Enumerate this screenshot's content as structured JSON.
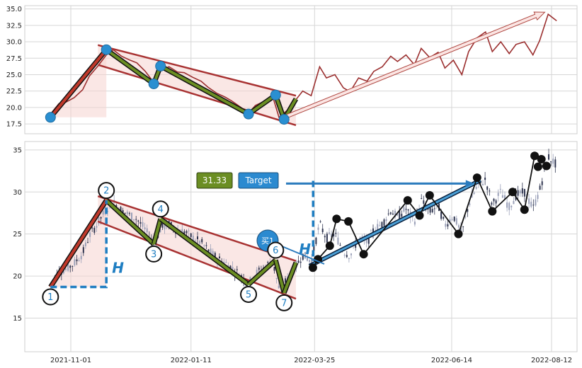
{
  "chart_data": [
    {
      "type": "line",
      "panel": "top",
      "title": "",
      "xlabel": "",
      "ylabel": "",
      "ylim": [
        16,
        35.5
      ],
      "yticks": [
        "17.5",
        "20.0",
        "22.5",
        "25.0",
        "27.5",
        "30.0",
        "32.5",
        "35.0"
      ],
      "grid": true,
      "series": [
        {
          "color": "#9b2f2f",
          "x": [
            "2021-10-20",
            "2021-10-25",
            "2021-10-29",
            "2021-11-03",
            "2021-11-08",
            "2021-11-12",
            "2021-11-17",
            "2021-11-22",
            "2021-11-26",
            "2021-12-01",
            "2021-12-06",
            "2021-12-10",
            "2021-12-15",
            "2021-12-20",
            "2021-12-24",
            "2021-12-29",
            "2022-01-03",
            "2022-01-07",
            "2022-01-12",
            "2022-01-17",
            "2022-01-21",
            "2022-01-26",
            "2022-01-31",
            "2022-02-04",
            "2022-02-09",
            "2022-02-14",
            "2022-02-18",
            "2022-02-23",
            "2022-02-28",
            "2022-03-04",
            "2022-03-09",
            "2022-03-14",
            "2022-03-18",
            "2022-03-23",
            "2022-03-28",
            "2022-04-01",
            "2022-04-06",
            "2022-04-11",
            "2022-04-15",
            "2022-04-20",
            "2022-04-25",
            "2022-04-29",
            "2022-05-04",
            "2022-05-09",
            "2022-05-13",
            "2022-05-18",
            "2022-05-23",
            "2022-05-27",
            "2022-06-01",
            "2022-06-06",
            "2022-06-10",
            "2022-06-15",
            "2022-06-20",
            "2022-06-24",
            "2022-06-29",
            "2022-07-04",
            "2022-07-08",
            "2022-07-13",
            "2022-07-18",
            "2022-07-22",
            "2022-07-27",
            "2022-08-01",
            "2022-08-05",
            "2022-08-10",
            "2022-08-15"
          ],
          "values": [
            19.0,
            20.6,
            20.8,
            21.5,
            22.7,
            24.8,
            26.3,
            28.0,
            28.8,
            27.8,
            27.2,
            26.8,
            25.5,
            23.8,
            25.6,
            26.2,
            25.4,
            25.3,
            24.6,
            24.0,
            23.1,
            22.2,
            21.6,
            21.0,
            20.1,
            19.1,
            20.3,
            20.9,
            21.9,
            18.5,
            19.6,
            21.2,
            22.5,
            21.8,
            26.2,
            24.5,
            25.0,
            23.0,
            22.4,
            24.5,
            24.0,
            25.5,
            26.2,
            27.8,
            27.0,
            28.0,
            26.5,
            29.0,
            27.6,
            28.4,
            26.0,
            27.2,
            25.0,
            28.5,
            30.6,
            31.5,
            28.5,
            30.0,
            28.2,
            29.6,
            30.0,
            28.0,
            30.2,
            34.2,
            33.2
          ]
        }
      ],
      "pattern": {
        "points": [
          {
            "x": "2021-10-20",
            "y": 18.5
          },
          {
            "x": "2021-11-22",
            "y": 28.8
          },
          {
            "x": "2021-12-20",
            "y": 23.6
          },
          {
            "x": "2021-12-24",
            "y": 26.3
          },
          {
            "x": "2022-02-14",
            "y": 19.0
          },
          {
            "x": "2022-03-02",
            "y": 21.9
          },
          {
            "x": "2022-03-07",
            "y": 18.2
          }
        ],
        "channel_upper": [
          {
            "x": "2021-11-17",
            "y": 29.5
          },
          {
            "x": "2022-03-14",
            "y": 21.8
          }
        ],
        "channel_lower": [
          {
            "x": "2021-11-17",
            "y": 26.5
          },
          {
            "x": "2022-03-14",
            "y": 17.3
          }
        ],
        "projection": [
          {
            "x": "2022-03-07",
            "y": 18.5
          },
          {
            "x": "2022-08-08",
            "y": 34.5
          }
        ]
      }
    },
    {
      "type": "candlestick",
      "panel": "bottom",
      "title": "",
      "xlabel": "",
      "ylabel": "",
      "ylim": [
        11,
        36
      ],
      "yticks": [
        "15",
        "20",
        "25",
        "30",
        "35"
      ],
      "xticks": [
        "2021-11-01",
        "2022-01-11",
        "2022-03-25",
        "2022-06-14",
        "2022-08-12"
      ],
      "grid": true,
      "pattern_points": [
        {
          "label": "1",
          "x": "2021-10-20",
          "y": 18.7
        },
        {
          "label": "2",
          "x": "2021-11-22",
          "y": 29.0
        },
        {
          "label": "3",
          "x": "2021-12-20",
          "y": 23.8
        },
        {
          "label": "4",
          "x": "2021-12-24",
          "y": 26.8
        },
        {
          "label": "5",
          "x": "2022-02-14",
          "y": 19.0
        },
        {
          "label": "6",
          "x": "2022-03-02",
          "y": 21.9
        },
        {
          "label": "7",
          "x": "2022-03-07",
          "y": 18.0
        }
      ],
      "channel_upper": [
        {
          "x": "2021-11-17",
          "y": 29.5
        },
        {
          "x": "2022-03-14",
          "y": 21.8
        }
      ],
      "channel_lower": [
        {
          "x": "2021-11-17",
          "y": 26.5
        },
        {
          "x": "2022-03-14",
          "y": 17.3
        }
      ],
      "height_label": "H",
      "target_value": "31.33",
      "target_label": "Target",
      "buy_label": "买1",
      "swings": [
        {
          "x": "2022-03-24",
          "y": 21.0
        },
        {
          "x": "2022-03-27",
          "y": 22.0
        },
        {
          "x": "2022-04-03",
          "y": 23.6
        },
        {
          "x": "2022-04-07",
          "y": 26.8
        },
        {
          "x": "2022-04-14",
          "y": 26.5
        },
        {
          "x": "2022-04-23",
          "y": 22.6
        },
        {
          "x": "2022-05-19",
          "y": 29.0
        },
        {
          "x": "2022-05-26",
          "y": 27.2
        },
        {
          "x": "2022-06-01",
          "y": 29.6
        },
        {
          "x": "2022-06-18",
          "y": 25.0
        },
        {
          "x": "2022-06-29",
          "y": 31.7
        },
        {
          "x": "2022-07-08",
          "y": 27.7
        },
        {
          "x": "2022-07-20",
          "y": 30.0
        },
        {
          "x": "2022-07-27",
          "y": 27.9
        },
        {
          "x": "2022-08-02",
          "y": 34.3
        },
        {
          "x": "2022-08-06",
          "y": 33.9
        },
        {
          "x": "2022-08-09",
          "y": 33.1
        },
        {
          "x": "2022-08-04",
          "y": 33.0
        }
      ]
    }
  ],
  "ui": {
    "target_value_text": "31.33",
    "target_text": "Target",
    "buy_text": "买1",
    "h_text": "H",
    "pattern_labels": [
      "1",
      "2",
      "3",
      "4",
      "5",
      "6",
      "7"
    ]
  }
}
